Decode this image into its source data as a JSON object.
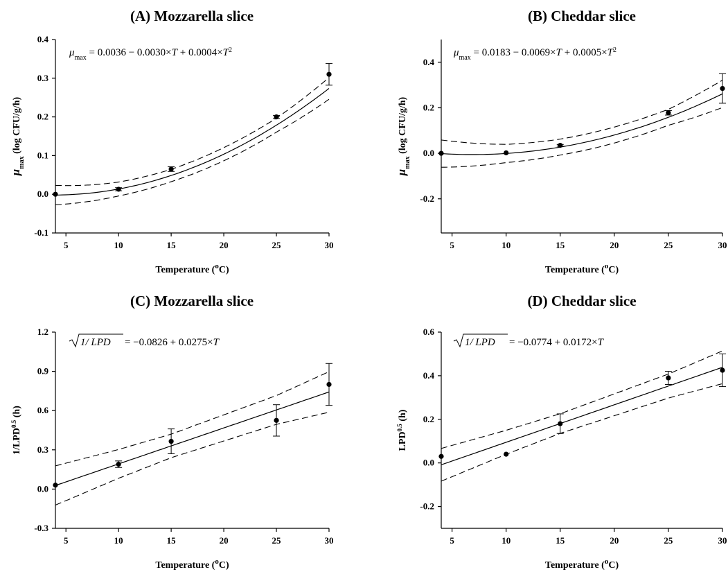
{
  "chart_data": [
    {
      "id": "A",
      "type": "scatter",
      "title": "(A) Mozzarella slice",
      "xlabel": "Temperature (",
      "xlabel_sup": "o",
      "xlabel_tail": "C)",
      "ylabel": "μ",
      "ylabel_sub": "max",
      "ylabel_tail": " (log CFU/g/h)",
      "xlim": [
        4,
        30
      ],
      "ylim": [
        -0.1,
        0.4
      ],
      "xticks": [
        5,
        10,
        15,
        20,
        25,
        30
      ],
      "yticks": [
        -0.1,
        0.0,
        0.1,
        0.2,
        0.3,
        0.4
      ],
      "ytick_labels": [
        "-0.1",
        "0.0",
        "0.1",
        "0.2",
        "0.3",
        "0.4"
      ],
      "x": [
        4,
        10,
        15,
        25,
        30
      ],
      "y": [
        0.0,
        0.013,
        0.065,
        0.2,
        0.31
      ],
      "err": [
        0,
        0.004,
        0.006,
        0.004,
        0.028
      ],
      "model": "poly2",
      "coef": [
        0.0036,
        -0.003,
        0.0004
      ],
      "ci_halfwidth": [
        0.025,
        0.018,
        0.016,
        0.018,
        0.028
      ],
      "equation": {
        "lhs": "μ",
        "lhs_sub": "max",
        "rhs": " = 0.0036 − 0.0030×",
        "var1": "T",
        "mid": " + 0.0004×",
        "var2": "T",
        "sup": "2"
      }
    },
    {
      "id": "B",
      "type": "scatter",
      "title": "(B) Cheddar slice",
      "xlabel": "Temperature (",
      "xlabel_sup": "o",
      "xlabel_tail": "C)",
      "ylabel": "μ",
      "ylabel_sub": "max",
      "ylabel_tail": " (log CFU/g/h)",
      "xlim": [
        4,
        30
      ],
      "ylim": [
        -0.35,
        0.5
      ],
      "xticks": [
        5,
        10,
        15,
        20,
        25,
        30
      ],
      "yticks": [
        -0.2,
        0.0,
        0.2,
        0.4
      ],
      "ytick_labels": [
        "-0.2",
        "0.0",
        "0.2",
        "0.4"
      ],
      "x": [
        4,
        10,
        15,
        25,
        30
      ],
      "y": [
        0.0,
        0.002,
        0.035,
        0.178,
        0.285
      ],
      "err": [
        0,
        0,
        0.004,
        0.01,
        0.065
      ],
      "model": "poly2",
      "coef": [
        0.0183,
        -0.0069,
        0.0005
      ],
      "ci_halfwidth": [
        0.06,
        0.04,
        0.035,
        0.035,
        0.06
      ],
      "equation": {
        "lhs": "μ",
        "lhs_sub": "max",
        "rhs": " = 0.0183 − 0.0069×",
        "var1": "T",
        "mid": " + 0.0005×",
        "var2": "T",
        "sup": "2"
      }
    },
    {
      "id": "C",
      "type": "scatter",
      "title": "(C) Mozzarella slice",
      "xlabel": "Temperature (",
      "xlabel_sup": "o",
      "xlabel_tail": "C)",
      "ylabel": "1/LPD",
      "ylabel_sup": "0.5",
      "ylabel_tail": " (h)",
      "xlim": [
        4,
        30
      ],
      "ylim": [
        -0.3,
        1.2
      ],
      "xticks": [
        5,
        10,
        15,
        20,
        25,
        30
      ],
      "yticks": [
        -0.3,
        0.0,
        0.3,
        0.6,
        0.9,
        1.2
      ],
      "ytick_labels": [
        "-0.3",
        "0.0",
        "0.3",
        "0.6",
        "0.9",
        "1.2"
      ],
      "x": [
        4,
        10,
        15,
        25,
        30
      ],
      "y": [
        0.03,
        0.19,
        0.365,
        0.525,
        0.8
      ],
      "err": [
        0,
        0.025,
        0.095,
        0.12,
        0.16
      ],
      "model": "linear",
      "coef": [
        -0.0826,
        0.0275
      ],
      "ci_halfwidth": [
        0.15,
        0.11,
        0.09,
        0.11,
        0.155
      ],
      "equation": {
        "radicand": "1/ LPD",
        "rhs": " = −0.0826 + 0.0275×",
        "var1": "T"
      }
    },
    {
      "id": "D",
      "type": "scatter",
      "title": "(D) Cheddar slice",
      "xlabel": "Temperature (",
      "xlabel_sup": "o",
      "xlabel_tail": "C)",
      "ylabel": "LPD",
      "ylabel_sup": "0.5",
      "ylabel_tail": " (h)",
      "xlim": [
        4,
        30
      ],
      "ylim": [
        -0.3,
        0.6
      ],
      "xticks": [
        5,
        10,
        15,
        20,
        25,
        30
      ],
      "yticks": [
        -0.2,
        0.0,
        0.2,
        0.4,
        0.6
      ],
      "ytick_labels": [
        "-0.2",
        "0.0",
        "0.2",
        "0.4",
        "0.6"
      ],
      "x": [
        4,
        10,
        15,
        25,
        30
      ],
      "y": [
        0.03,
        0.04,
        0.18,
        0.39,
        0.425
      ],
      "err": [
        0,
        0,
        0.045,
        0.03,
        0.075
      ],
      "model": "linear",
      "coef": [
        -0.0774,
        0.0172
      ],
      "ci_halfwidth": [
        0.075,
        0.055,
        0.045,
        0.055,
        0.075
      ],
      "equation": {
        "radicand": "1/ LPD",
        "rhs": " = −0.0774 + 0.0172×",
        "var1": "T"
      }
    }
  ]
}
